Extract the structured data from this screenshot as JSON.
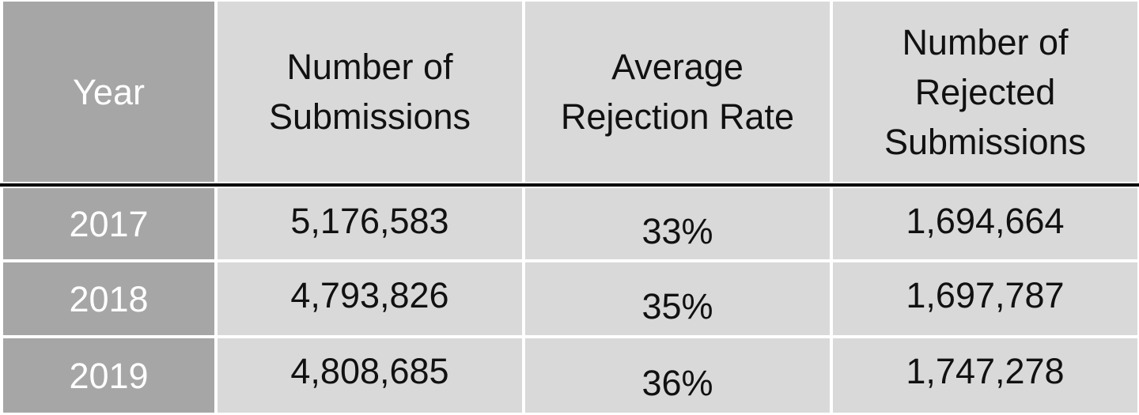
{
  "table": {
    "headers": [
      "Year",
      "Number of\nSubmissions",
      "Average\nRejection Rate",
      "Number of\nRejected\nSubmissions"
    ],
    "rows": [
      {
        "year": "2017",
        "submissions": "5,176,583",
        "rejection_rate": "33%",
        "rejected": "1,694,664"
      },
      {
        "year": "2018",
        "submissions": "4,793,826",
        "rejection_rate": "35%",
        "rejected": "1,697,787"
      },
      {
        "year": "2019",
        "submissions": "4,808,685",
        "rejection_rate": "36%",
        "rejected": "1,747,278"
      }
    ]
  },
  "colors": {
    "year_column": "#a6a6a6",
    "body_cells": "#d9d9d9",
    "year_text": "#ffffff",
    "body_text": "#111111",
    "header_rule": "#000000"
  }
}
